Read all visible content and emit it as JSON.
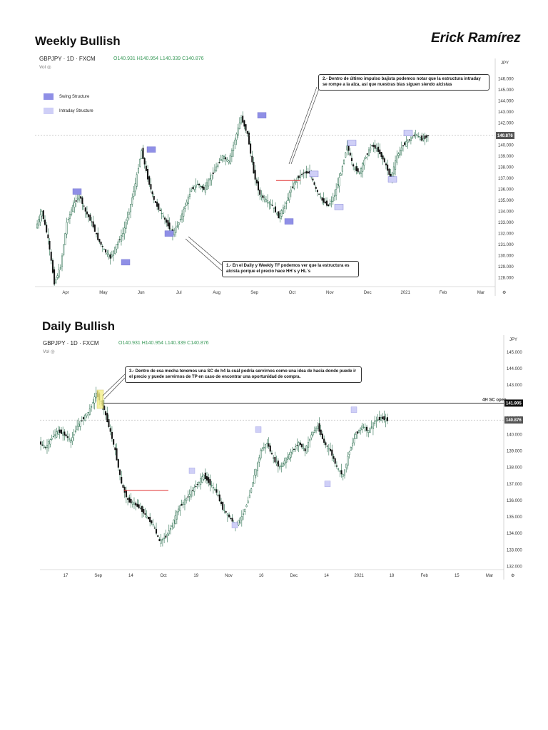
{
  "header": {
    "weekly_title": "Weekly Bullish",
    "author": "Erick Ramírez",
    "daily_title": "Daily Bullish"
  },
  "chart_data": [
    {
      "type": "candlestick",
      "symbol": "GBPJPY · 1D · FXCM",
      "ohlc_text": "O140.931 H140.954 L140.339 C140.876",
      "volume_label": "Vol",
      "currency": "JPY",
      "y_ticks": [
        "146.000",
        "145.000",
        "144.000",
        "143.000",
        "142.000",
        "141.000",
        "140.000",
        "139.000",
        "138.000",
        "137.000",
        "136.000",
        "135.000",
        "134.000",
        "133.000",
        "132.000",
        "131.000",
        "130.000",
        "129.000",
        "128.000"
      ],
      "ylim": [
        127.2,
        147.2
      ],
      "x_ticks": [
        "Apr",
        "May",
        "Jun",
        "Jul",
        "Aug",
        "Sep",
        "Oct",
        "Nov",
        "Dec",
        "2021",
        "Feb",
        "Mar"
      ],
      "last_price": "140.876",
      "legend": [
        {
          "label": "Swing Structure",
          "color": "#8f8fe6"
        },
        {
          "label": "Intraday Structure",
          "color": "#cfcff7"
        }
      ],
      "annotations": [
        "2.- Dentro de último impulso bajista podemos notar que la estructura intraday se rompe a la alza, así que nuestras bias siguen siendo alcistas",
        "1.- En el Daily y Weekly TF podemos ver que la estructura es alcista porque el precio hace HH´s y HL´s"
      ],
      "price_path": [
        132.5,
        134,
        131.5,
        127.5,
        129,
        133,
        134.5,
        135.5,
        134,
        133,
        131.5,
        130.5,
        129.8,
        131,
        132,
        134,
        136.5,
        139.5,
        137,
        135,
        134,
        133,
        132,
        133,
        134.5,
        136,
        136.5,
        136,
        137,
        138,
        139,
        138.5,
        140.5,
        142.5,
        141,
        137.5,
        135.5,
        135,
        134.5,
        133.5,
        134.5,
        136,
        137,
        137.5,
        137.5,
        136,
        135,
        134.5,
        135.5,
        137.5,
        140,
        138,
        137.5,
        139,
        140,
        139.5,
        138.5,
        137,
        139,
        140,
        140.5,
        141,
        140.5,
        140.876
      ],
      "swing_markers": [
        {
          "price": 135.8,
          "kind": "swing"
        },
        {
          "price": 129.4,
          "kind": "swing"
        },
        {
          "price": 139.6,
          "kind": "swing"
        },
        {
          "price": 132.0,
          "kind": "swing"
        },
        {
          "price": 142.7,
          "kind": "swing"
        },
        {
          "price": 133.1,
          "kind": "swing"
        },
        {
          "price": 137.4,
          "kind": "intraday"
        },
        {
          "price": 134.4,
          "kind": "intraday"
        },
        {
          "price": 140.2,
          "kind": "intraday"
        },
        {
          "price": 136.9,
          "kind": "intraday"
        },
        {
          "price": 141.1,
          "kind": "intraday"
        }
      ]
    },
    {
      "type": "candlestick",
      "symbol": "GBPJPY · 1D · FXCM",
      "ohlc_text": "O140.931 H140.954 L140.339 C140.876",
      "volume_label": "Vol",
      "currency": "JPY",
      "y_ticks": [
        "145.000",
        "144.000",
        "143.000",
        "142.000",
        "141.000",
        "140.000",
        "139.000",
        "138.000",
        "137.000",
        "136.000",
        "135.000",
        "134.000",
        "133.000",
        "132.000"
      ],
      "ylim": [
        131.8,
        145.6
      ],
      "x_ticks": [
        "17",
        "Sep",
        "14",
        "Oct",
        "19",
        "Nov",
        "16",
        "Dec",
        "14",
        "2021",
        "18",
        "Feb",
        "15",
        "Mar"
      ],
      "last_price": "140.876",
      "level_label": "4H SC open",
      "level_price": "141.905",
      "annotations": [
        "3.- Dentro de esa mecha tenemos una SC de h4 la cuál podría servirnos como una idea de hacia donde puede ir el precio y puede servirnos de TP en caso de encontrar una oportunidad de compra."
      ],
      "price_path": [
        139.5,
        139.2,
        139.8,
        140.2,
        140,
        139.6,
        140.5,
        141,
        141.5,
        142.5,
        141.8,
        140.5,
        139,
        137,
        136,
        135.8,
        135.5,
        135,
        134.5,
        133.5,
        133.8,
        134.5,
        135.5,
        136,
        136.5,
        137,
        137.5,
        137,
        136.5,
        135.5,
        135,
        134.5,
        135,
        136,
        137.5,
        139,
        139.5,
        138.5,
        138,
        138.5,
        139,
        139.5,
        139,
        140,
        140.5,
        139.5,
        139,
        138,
        137.5,
        139,
        140,
        140.5,
        140.2,
        140.8,
        141,
        140.876
      ]
    }
  ]
}
